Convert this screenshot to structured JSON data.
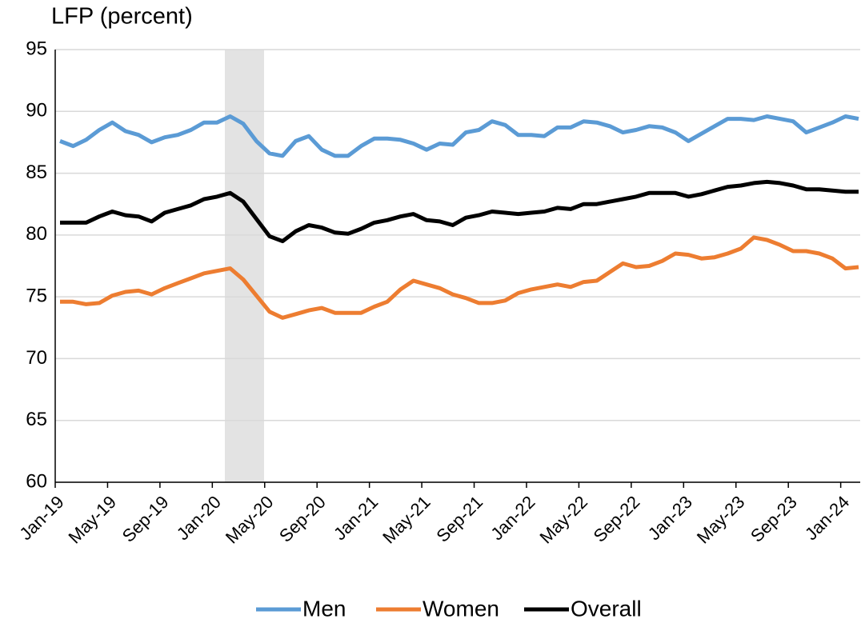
{
  "chart_data": {
    "type": "line",
    "title": "LFP (percent)",
    "categories": [
      "Jan-19",
      null,
      null,
      null,
      "May-19",
      null,
      null,
      null,
      "Sep-19",
      null,
      null,
      null,
      "Jan-20",
      null,
      null,
      null,
      "May-20",
      null,
      null,
      null,
      "Sep-20",
      null,
      null,
      null,
      "Jan-21",
      null,
      null,
      null,
      "May-21",
      null,
      null,
      null,
      "Sep-21",
      null,
      null,
      null,
      "Jan-22",
      null,
      null,
      null,
      "May-22",
      null,
      null,
      null,
      "Sep-22",
      null,
      null,
      null,
      "Jan-23",
      null,
      null,
      null,
      "May-23",
      null,
      null,
      null,
      "Sep-23",
      null,
      null,
      null,
      "Jan-24",
      null
    ],
    "series": [
      {
        "name": "Men",
        "color": "#5b9bd5",
        "values": [
          87.6,
          87.2,
          87.7,
          88.5,
          89.1,
          88.4,
          88.1,
          87.5,
          87.9,
          88.1,
          88.5,
          89.1,
          89.1,
          89.6,
          89.0,
          87.6,
          86.6,
          86.4,
          87.6,
          88.0,
          86.9,
          86.4,
          86.4,
          87.2,
          87.8,
          87.8,
          87.7,
          87.4,
          86.9,
          87.4,
          87.3,
          88.3,
          88.5,
          89.2,
          88.9,
          88.1,
          88.1,
          88.0,
          88.7,
          88.7,
          89.2,
          89.1,
          88.8,
          88.3,
          88.5,
          88.8,
          88.7,
          88.3,
          87.6,
          88.2,
          88.8,
          89.4,
          89.4,
          89.3,
          89.6,
          89.4,
          89.2,
          88.3,
          88.7,
          89.1,
          89.6,
          89.4
        ]
      },
      {
        "name": "Women",
        "color": "#ed7d31",
        "values": [
          74.6,
          74.6,
          74.4,
          74.5,
          75.1,
          75.4,
          75.5,
          75.2,
          75.7,
          76.1,
          76.5,
          76.9,
          77.1,
          77.3,
          76.4,
          75.1,
          73.8,
          73.3,
          73.6,
          73.9,
          74.1,
          73.7,
          73.7,
          73.7,
          74.2,
          74.6,
          75.6,
          76.3,
          76.0,
          75.7,
          75.2,
          74.9,
          74.5,
          74.5,
          74.7,
          75.3,
          75.6,
          75.8,
          76.0,
          75.8,
          76.2,
          76.3,
          77.0,
          77.7,
          77.4,
          77.5,
          77.9,
          78.5,
          78.4,
          78.1,
          78.2,
          78.5,
          78.9,
          79.8,
          79.6,
          79.2,
          78.7,
          78.7,
          78.5,
          78.1,
          77.3,
          77.4
        ]
      },
      {
        "name": "Overall",
        "color": "#000000",
        "values": [
          81.0,
          81.0,
          81.0,
          81.5,
          81.9,
          81.6,
          81.5,
          81.1,
          81.8,
          82.1,
          82.4,
          82.9,
          83.1,
          83.4,
          82.7,
          81.3,
          79.9,
          79.5,
          80.3,
          80.8,
          80.6,
          80.2,
          80.1,
          80.5,
          81.0,
          81.2,
          81.5,
          81.7,
          81.2,
          81.1,
          80.8,
          81.4,
          81.6,
          81.9,
          81.8,
          81.7,
          81.8,
          81.9,
          82.2,
          82.1,
          82.5,
          82.5,
          82.7,
          82.9,
          83.1,
          83.4,
          83.4,
          83.4,
          83.1,
          83.3,
          83.6,
          83.9,
          84.0,
          84.2,
          84.3,
          84.2,
          84.0,
          83.7,
          83.7,
          83.6,
          83.5,
          83.5
        ]
      }
    ],
    "ylim": [
      60,
      95
    ],
    "yticks": [
      60,
      65,
      70,
      75,
      80,
      85,
      90,
      95
    ],
    "grid": true
  }
}
